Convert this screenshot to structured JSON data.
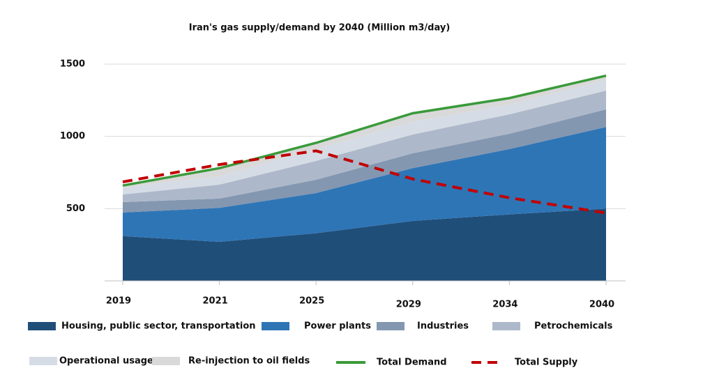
{
  "chart_data": {
    "type": "stacked-area-line",
    "title": "Iran's gas supply/demand by 2040 (Million m3/day)",
    "categories": [
      "2019",
      "2021",
      "2025",
      "2029",
      "2034",
      "2040"
    ],
    "ylim": [
      0,
      1500
    ],
    "yticks": [
      500,
      1000,
      1500
    ],
    "grid": true,
    "series": [
      {
        "name": "Housing, public sector, transportation",
        "type": "area",
        "color": "#1f4e79",
        "values": [
          310,
          270,
          330,
          415,
          460,
          500
        ]
      },
      {
        "name": "Power plants",
        "type": "area",
        "color": "#2e75b6",
        "values": [
          163,
          235,
          278,
          365,
          452,
          565
        ]
      },
      {
        "name": "Industries",
        "type": "area",
        "color": "#8497b0",
        "values": [
          72,
          65,
          92,
          103,
          106,
          122
        ]
      },
      {
        "name": "Petrochemicals",
        "type": "area",
        "color": "#adb9ca",
        "values": [
          53,
          96,
          130,
          130,
          135,
          130
        ]
      },
      {
        "name": "Operational usage",
        "type": "area",
        "color": "#d6dce5",
        "values": [
          48,
          58,
          82,
          87,
          67,
          73
        ]
      },
      {
        "name": "Re-injection to oil fields",
        "type": "area",
        "color": "#d9d9d9",
        "values": [
          14,
          57,
          43,
          63,
          48,
          33
        ]
      },
      {
        "name": "Total Demand",
        "type": "line",
        "color": "#3a9a3a",
        "dashed": false,
        "values": [
          660,
          780,
          955,
          1160,
          1265,
          1420
        ]
      },
      {
        "name": "Total Supply",
        "type": "line",
        "color": "#c00000",
        "dashed": true,
        "values": [
          685,
          805,
          900,
          705,
          575,
          470
        ]
      }
    ]
  }
}
